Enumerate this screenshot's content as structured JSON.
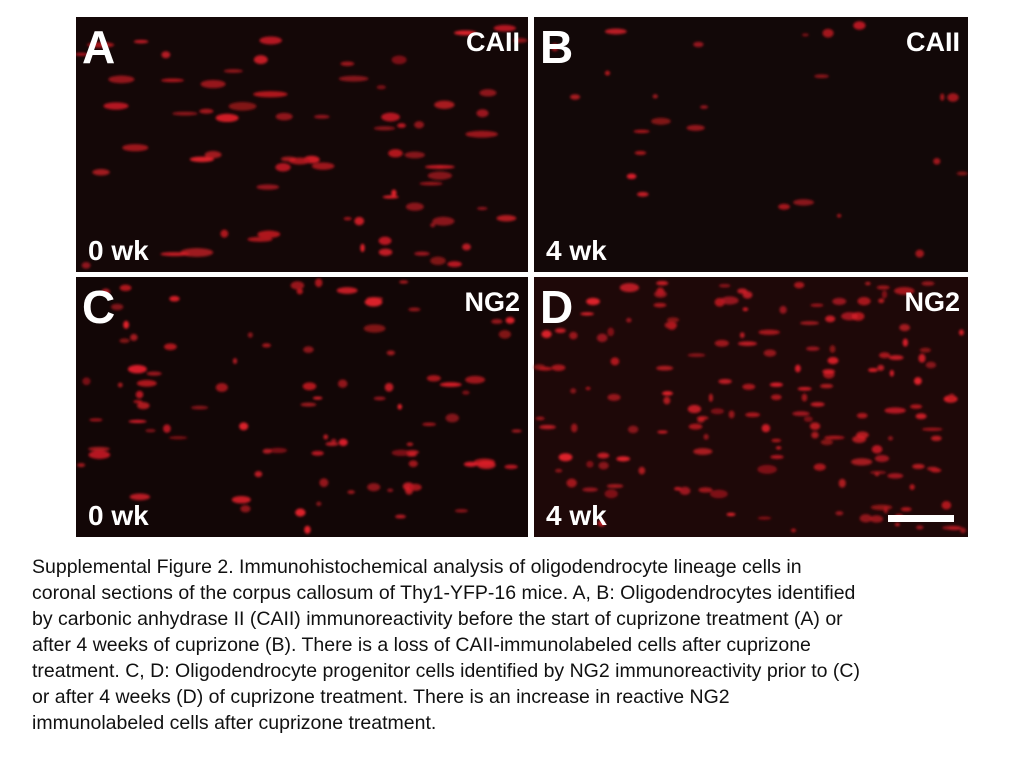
{
  "figure": {
    "panels": [
      {
        "letter": "A",
        "stain": "CAII",
        "time": "0 wk"
      },
      {
        "letter": "B",
        "stain": "CAII",
        "time": "4 wk"
      },
      {
        "letter": "C",
        "stain": "NG2",
        "time": "0 wk"
      },
      {
        "letter": "D",
        "stain": "NG2",
        "time": "4 wk"
      }
    ]
  },
  "caption": {
    "lines": [
      "Supplemental Figure 2. Immunohistochemical analysis of oligodendrocyte lineage cells in",
      "coronal sections of the corpus callosum of Thy1-YFP-16 mice. A, B: Oligodendrocytes identified",
      "by carbonic anhydrase II (CAII) immunoreactivity before the start of cuprizone treatment (A) or",
      "after 4 weeks of cuprizone (B). There is a loss of CAII-immunolabeled cells after cuprizone",
      "treatment. C, D: Oligodendrocyte progenitor cells identified by NG2 immunoreactivity prior to (C)",
      "or after 4 weeks (D) of cuprizone treatment. There is an increase in reactive NG2",
      "immunolabeled cells after cuprizone treatment."
    ]
  }
}
